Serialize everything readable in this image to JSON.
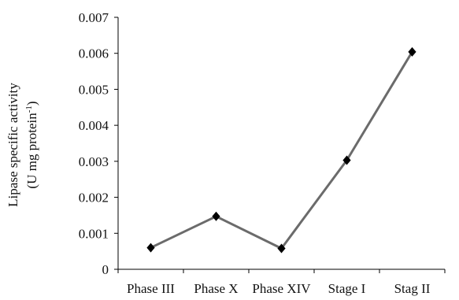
{
  "chart_data": {
    "type": "line",
    "categories": [
      "Phase III",
      "Phase X",
      "Phase XIV",
      "Stage I",
      "Stag II"
    ],
    "series": [
      {
        "values": [
          0.0006,
          0.00147,
          0.00058,
          0.00303,
          0.00604
        ]
      }
    ],
    "y_ticks": [
      "0",
      "0.001",
      "0.002",
      "0.003",
      "0.004",
      "0.005",
      "0.006",
      "0.007"
    ],
    "ylim": [
      0,
      0.007
    ],
    "ylabel_line1": "Lipase  specific activity",
    "ylabel_line2_main": "(U mg protein",
    "ylabel_line2_sup": "-1",
    "ylabel_line2_end": ")",
    "grid": false,
    "line_color": "#6b6b6b",
    "marker_color": "#000000",
    "marker": "diamond"
  }
}
